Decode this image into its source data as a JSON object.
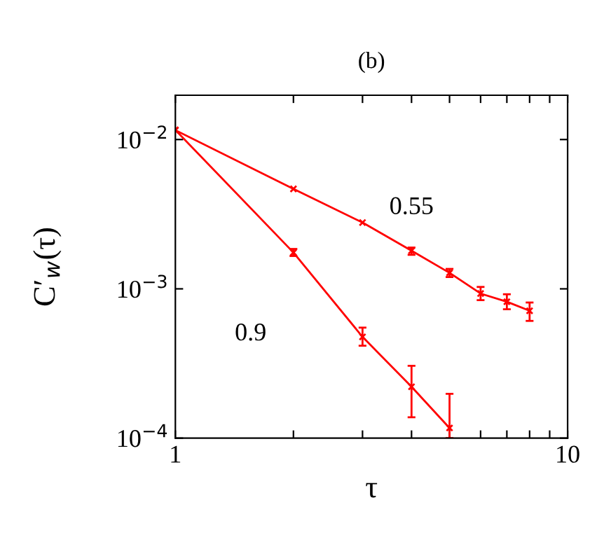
{
  "chart_data": {
    "type": "line",
    "title": "(b)",
    "xlabel": "τ",
    "ylabel": "C′$_{w}$(τ)",
    "log": "xy",
    "xlim": [
      1,
      10
    ],
    "ylim": [
      0.0001,
      0.0198
    ],
    "xticks": [
      1,
      {
        "value": 2,
        "label": null
      },
      {
        "value": 3,
        "label": null
      },
      {
        "value": 4,
        "label": null
      },
      {
        "value": 5,
        "label": null
      },
      {
        "value": 6,
        "label": null
      },
      {
        "value": 7,
        "label": null
      },
      {
        "value": 8,
        "label": null
      },
      {
        "value": 9,
        "label": null
      },
      10
    ],
    "yticks": [
      {
        "value": 0.0001,
        "label": "10$^{−4}$"
      },
      {
        "value": 0.001,
        "label": "10$^{−3}$"
      },
      {
        "value": 0.01,
        "label": "10$^{−2}$"
      }
    ],
    "marker": "cross",
    "line_style": "solid",
    "grid": false,
    "legend": false,
    "series": [
      {
        "name": "0.55",
        "color": "#ff0000",
        "x": [
          1,
          2,
          3,
          4,
          5,
          6,
          7,
          8
        ],
        "values": [
          0.01155,
          0.00467,
          0.00278,
          0.0018,
          0.00128,
          0.00093,
          0.00082,
          0.000713
        ],
        "errors": [
          null,
          null,
          null,
          [
            0.00169,
            0.00189
          ],
          [
            0.0012,
            0.00136
          ],
          [
            0.00084,
            0.00103
          ],
          [
            0.00073,
            0.00092
          ],
          [
            0.00061,
            0.00081
          ]
        ]
      },
      {
        "name": "0.9",
        "color": "#ff0000",
        "x": [
          1,
          2,
          3,
          4,
          5
        ],
        "values": [
          0.0116,
          0.00175,
          0.000477,
          0.000221,
          0.000117
        ],
        "errors": [
          null,
          [
            0.00166,
            0.00185
          ],
          [
            0.000416,
            0.00055
          ],
          [
            0.000138,
            0.000305
          ],
          [
            0.0001,
            0.000198
          ]
        ]
      }
    ]
  }
}
